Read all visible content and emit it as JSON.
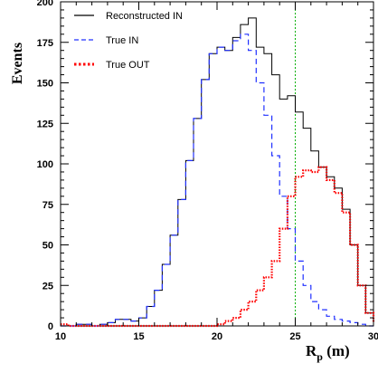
{
  "chart_data": {
    "type": "line",
    "title": "",
    "xlabel": "R",
    "xlabel_sub": "p",
    "xlabel_unit": " (m)",
    "ylabel": "Events",
    "xlim": [
      10,
      30
    ],
    "ylim": [
      0,
      200
    ],
    "x_ticks": [
      10,
      15,
      20,
      25,
      30
    ],
    "y_ticks": [
      0,
      25,
      50,
      75,
      100,
      125,
      150,
      175,
      200
    ],
    "grid": false,
    "legend_position": "top-left",
    "reference_line": {
      "x": 25,
      "color": "#00b000",
      "style": "dotted"
    },
    "series": [
      {
        "name": "Reconstructed IN",
        "color": "#000000",
        "style": "solid",
        "x": [
          10.0,
          10.5,
          11.0,
          11.5,
          12.0,
          12.5,
          13.0,
          13.5,
          14.0,
          14.5,
          15.0,
          15.5,
          16.0,
          16.5,
          17.0,
          17.5,
          18.0,
          18.5,
          19.0,
          19.5,
          20.0,
          20.5,
          21.0,
          21.5,
          22.0,
          22.5,
          23.0,
          23.5,
          24.0,
          24.5,
          25.0,
          25.5,
          26.0,
          26.5,
          27.0,
          27.5,
          28.0,
          28.5,
          29.0,
          29.5,
          30.0
        ],
        "y": [
          0,
          0,
          1,
          1,
          0,
          1,
          2,
          4,
          4,
          3,
          5,
          12,
          22,
          38,
          56,
          78,
          102,
          128,
          152,
          168,
          172,
          170,
          178,
          186,
          190,
          172,
          168,
          155,
          140,
          142,
          132,
          122,
          108,
          98,
          92,
          85,
          72,
          50,
          25,
          8,
          2
        ]
      },
      {
        "name": "True IN",
        "color": "#2030ff",
        "style": "dashed",
        "x": [
          10.0,
          10.5,
          11.0,
          11.5,
          12.0,
          12.5,
          13.0,
          13.5,
          14.0,
          14.5,
          15.0,
          15.5,
          16.0,
          16.5,
          17.0,
          17.5,
          18.0,
          18.5,
          19.0,
          19.5,
          20.0,
          20.5,
          21.0,
          21.5,
          22.0,
          22.5,
          23.0,
          23.5,
          24.0,
          24.5,
          25.0,
          25.5,
          26.0,
          26.5,
          27.0,
          27.5,
          28.0,
          28.5,
          29.0,
          29.5,
          30.0
        ],
        "y": [
          0,
          0,
          1,
          1,
          0,
          1,
          2,
          4,
          4,
          3,
          5,
          12,
          22,
          38,
          56,
          78,
          102,
          128,
          152,
          168,
          172,
          170,
          176,
          180,
          170,
          150,
          130,
          105,
          80,
          60,
          40,
          25,
          15,
          10,
          6,
          4,
          3,
          2,
          1,
          0,
          0
        ]
      },
      {
        "name": "True OUT",
        "color": "#ff0000",
        "style": "dotted",
        "x": [
          10.0,
          10.5,
          11.0,
          11.5,
          12.0,
          12.5,
          13.0,
          13.5,
          14.0,
          14.5,
          15.0,
          15.5,
          16.0,
          16.5,
          17.0,
          17.5,
          18.0,
          18.5,
          19.0,
          19.5,
          20.0,
          20.5,
          21.0,
          21.5,
          22.0,
          22.5,
          23.0,
          23.5,
          24.0,
          24.5,
          25.0,
          25.5,
          26.0,
          26.5,
          27.0,
          27.5,
          28.0,
          28.5,
          29.0,
          29.5,
          30.0
        ],
        "y": [
          1,
          0,
          0,
          0,
          0,
          0,
          0,
          0,
          0,
          0,
          0,
          0,
          0,
          0,
          0,
          0,
          0,
          0,
          0,
          0,
          1,
          3,
          5,
          10,
          15,
          22,
          30,
          40,
          60,
          80,
          92,
          96,
          95,
          98,
          90,
          82,
          70,
          50,
          25,
          8,
          2
        ]
      }
    ]
  }
}
